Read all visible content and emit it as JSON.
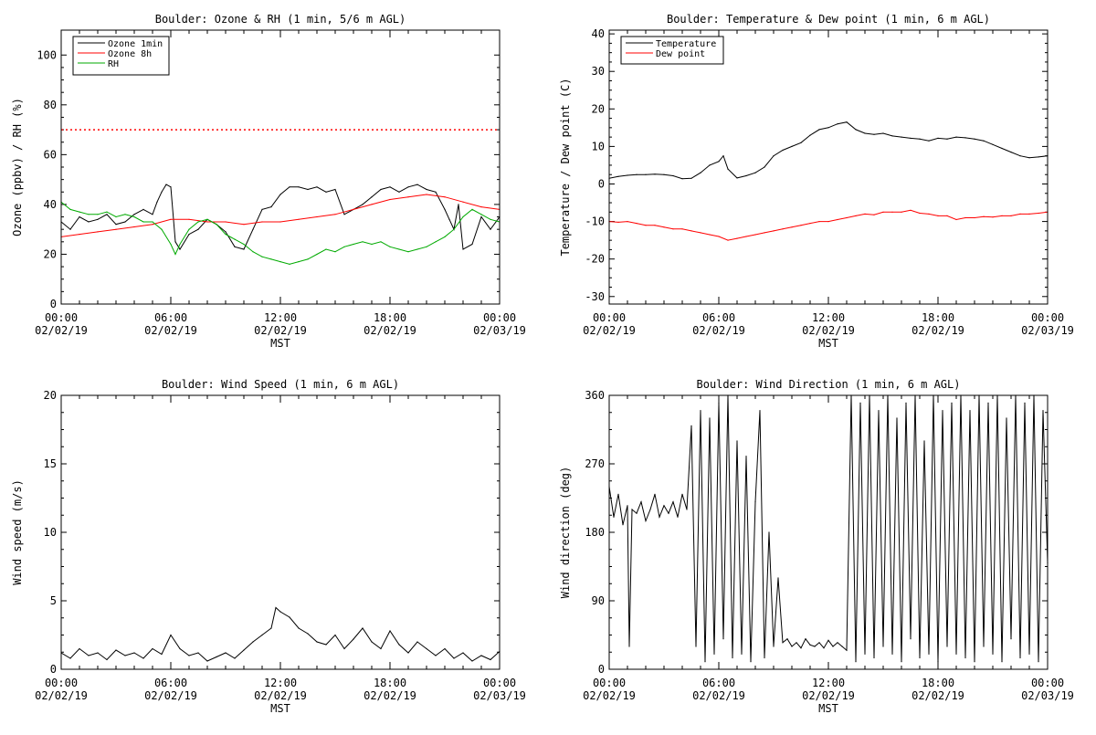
{
  "chart_data": [
    {
      "type": "line",
      "title": "Boulder: Ozone & RH (1 min, 5/6 m AGL)",
      "ylabel": "Ozone (ppbv) / RH (%)",
      "xlabel": "MST",
      "xlim": [
        0,
        24
      ],
      "ylim": [
        0,
        110
      ],
      "yticks": [
        0,
        20,
        40,
        60,
        80,
        100
      ],
      "xtick_labels": [
        [
          "00:00",
          "02/02/19"
        ],
        [
          "06:00",
          "02/02/19"
        ],
        [
          "12:00",
          "02/02/19"
        ],
        [
          "18:00",
          "02/02/19"
        ],
        [
          "00:00",
          "02/03/19"
        ]
      ],
      "reference_line": {
        "y": 70,
        "color": "#ff0000",
        "style": "dotted"
      },
      "legend_position": "top-left",
      "series": [
        {
          "name": "Ozone 1min",
          "color": "#000000",
          "x": [
            0,
            0.5,
            1,
            1.5,
            2,
            2.5,
            3,
            3.5,
            4,
            4.5,
            5,
            5.25,
            5.5,
            5.75,
            6,
            6.25,
            6.5,
            7,
            7.5,
            8,
            8.5,
            9,
            9.5,
            10,
            10.5,
            11,
            11.5,
            12,
            12.5,
            13,
            13.5,
            14,
            14.5,
            15,
            15.5,
            16,
            16.5,
            17,
            17.5,
            18,
            18.5,
            19,
            19.5,
            20,
            20.5,
            21,
            21.25,
            21.5,
            21.75,
            22,
            22.5,
            23,
            23.5,
            24
          ],
          "y": [
            33,
            30,
            35,
            33,
            34,
            36,
            32,
            33,
            36,
            38,
            36,
            41,
            45,
            48,
            47,
            25,
            22,
            28,
            30,
            34,
            32,
            29,
            23,
            22,
            30,
            38,
            39,
            44,
            47,
            47,
            46,
            47,
            45,
            46,
            36,
            38,
            40,
            43,
            46,
            47,
            45,
            47,
            48,
            46,
            45,
            38,
            34,
            30,
            40,
            22,
            24,
            35,
            30,
            35
          ]
        },
        {
          "name": "Ozone 8h",
          "color": "#ff0000",
          "x": [
            0,
            1,
            2,
            3,
            4,
            5,
            6,
            7,
            8,
            9,
            10,
            11,
            12,
            13,
            14,
            15,
            16,
            17,
            18,
            19,
            20,
            21,
            22,
            23,
            24
          ],
          "y": [
            27,
            28,
            29,
            30,
            31,
            32,
            34,
            34,
            33,
            33,
            32,
            33,
            33,
            34,
            35,
            36,
            38,
            40,
            42,
            43,
            44,
            43,
            41,
            39,
            38
          ]
        },
        {
          "name": "RH",
          "color": "#00aa00",
          "x": [
            0,
            0.5,
            1,
            1.5,
            2,
            2.5,
            3,
            3.5,
            4,
            4.5,
            5,
            5.5,
            6,
            6.25,
            6.5,
            7,
            7.5,
            8,
            8.5,
            9,
            9.5,
            10,
            10.5,
            11,
            11.5,
            12,
            12.5,
            13,
            13.5,
            14,
            14.5,
            15,
            15.5,
            16,
            16.5,
            17,
            17.5,
            18,
            18.5,
            19,
            19.5,
            20,
            20.5,
            21,
            21.5,
            22,
            22.5,
            23,
            23.5,
            24
          ],
          "y": [
            41,
            38,
            37,
            36,
            36,
            37,
            35,
            36,
            35,
            33,
            33,
            30,
            24,
            20,
            24,
            30,
            33,
            34,
            32,
            28,
            26,
            24,
            21,
            19,
            18,
            17,
            16,
            17,
            18,
            20,
            22,
            21,
            23,
            24,
            25,
            24,
            25,
            23,
            22,
            21,
            22,
            23,
            25,
            27,
            30,
            35,
            38,
            36,
            34,
            33
          ]
        }
      ]
    },
    {
      "type": "line",
      "title": "Boulder: Temperature & Dew point (1 min, 6 m AGL)",
      "ylabel": "Temperature / Dew point (C)",
      "xlabel": "MST",
      "xlim": [
        0,
        24
      ],
      "ylim": [
        -32,
        41
      ],
      "yticks": [
        -30,
        -20,
        -10,
        0,
        10,
        20,
        30,
        40
      ],
      "xtick_labels": [
        [
          "00:00",
          "02/02/19"
        ],
        [
          "06:00",
          "02/02/19"
        ],
        [
          "12:00",
          "02/02/19"
        ],
        [
          "18:00",
          "02/02/19"
        ],
        [
          "00:00",
          "02/03/19"
        ]
      ],
      "legend_position": "top-left",
      "series": [
        {
          "name": "Temperature",
          "color": "#000000",
          "x": [
            0,
            0.5,
            1,
            1.5,
            2,
            2.5,
            3,
            3.5,
            4,
            4.5,
            5,
            5.5,
            6,
            6.25,
            6.5,
            7,
            7.5,
            8,
            8.5,
            9,
            9.5,
            10,
            10.5,
            11,
            11.5,
            12,
            12.5,
            13,
            13.5,
            14,
            14.5,
            15,
            15.5,
            16,
            16.5,
            17,
            17.5,
            18,
            18.5,
            19,
            19.5,
            20,
            20.5,
            21,
            21.5,
            22,
            22.5,
            23,
            23.5,
            24
          ],
          "y": [
            1.5,
            2,
            2.3,
            2.5,
            2.5,
            2.6,
            2.5,
            2.2,
            1.4,
            1.5,
            3,
            5,
            6,
            7.5,
            4,
            1.6,
            2.2,
            3,
            4.5,
            7.5,
            9,
            10,
            11,
            13,
            14.5,
            15,
            16,
            16.5,
            14.5,
            13.5,
            13.2,
            13.5,
            12.8,
            12.5,
            12.2,
            12,
            11.5,
            12.2,
            12,
            12.5,
            12.3,
            12,
            11.5,
            10.5,
            9.5,
            8.5,
            7.5,
            7,
            7.2,
            7.5
          ]
        },
        {
          "name": "Dew point",
          "color": "#ff0000",
          "x": [
            0,
            0.5,
            1,
            1.5,
            2,
            2.5,
            3,
            3.5,
            4,
            4.5,
            5,
            5.5,
            6,
            6.5,
            7,
            7.5,
            8,
            8.5,
            9,
            9.5,
            10,
            10.5,
            11,
            11.5,
            12,
            12.5,
            13,
            13.5,
            14,
            14.5,
            15,
            15.5,
            16,
            16.5,
            17,
            17.5,
            18,
            18.5,
            19,
            19.5,
            20,
            20.5,
            21,
            21.5,
            22,
            22.5,
            23,
            23.5,
            24
          ],
          "y": [
            -10,
            -10.2,
            -10,
            -10.5,
            -11,
            -11,
            -11.5,
            -12,
            -12,
            -12.5,
            -13,
            -13.5,
            -14,
            -15,
            -14.5,
            -14,
            -13.5,
            -13,
            -12.5,
            -12,
            -11.5,
            -11,
            -10.5,
            -10,
            -10,
            -9.5,
            -9,
            -8.5,
            -8,
            -8.2,
            -7.5,
            -7.5,
            -7.5,
            -7,
            -7.8,
            -8,
            -8.5,
            -8.5,
            -9.5,
            -9,
            -9,
            -8.7,
            -8.8,
            -8.5,
            -8.5,
            -8,
            -8,
            -7.8,
            -7.5
          ]
        }
      ]
    },
    {
      "type": "line",
      "title": "Boulder: Wind Speed (1 min, 6 m AGL)",
      "ylabel": "Wind speed (m/s)",
      "xlabel": "MST",
      "xlim": [
        0,
        24
      ],
      "ylim": [
        0,
        20
      ],
      "yticks": [
        0,
        5,
        10,
        15,
        20
      ],
      "xtick_labels": [
        [
          "00:00",
          "02/02/19"
        ],
        [
          "06:00",
          "02/02/19"
        ],
        [
          "12:00",
          "02/02/19"
        ],
        [
          "18:00",
          "02/02/19"
        ],
        [
          "00:00",
          "02/03/19"
        ]
      ],
      "series": [
        {
          "name": "",
          "color": "#000000",
          "x": [
            0,
            0.5,
            1,
            1.5,
            2,
            2.5,
            3,
            3.5,
            4,
            4.5,
            5,
            5.5,
            6,
            6.5,
            7,
            7.5,
            8,
            8.5,
            9,
            9.5,
            10,
            10.5,
            11,
            11.5,
            11.75,
            12,
            12.5,
            13,
            13.5,
            14,
            14.5,
            15,
            15.5,
            16,
            16.5,
            17,
            17.5,
            18,
            18.5,
            19,
            19.5,
            20,
            20.5,
            21,
            21.5,
            22,
            22.5,
            23,
            23.5,
            24
          ],
          "y": [
            1.2,
            0.8,
            1.5,
            1,
            1.2,
            0.7,
            1.4,
            1,
            1.2,
            0.8,
            1.5,
            1.1,
            2.5,
            1.5,
            1,
            1.2,
            0.6,
            0.9,
            1.2,
            0.8,
            1.4,
            2,
            2.5,
            3,
            4.5,
            4.2,
            3.8,
            3,
            2.6,
            2,
            1.8,
            2.5,
            1.5,
            2.2,
            3,
            2,
            1.5,
            2.8,
            1.8,
            1.2,
            2,
            1.5,
            1,
            1.5,
            0.8,
            1.2,
            0.6,
            1,
            0.7,
            1.3
          ]
        }
      ]
    },
    {
      "type": "line",
      "title": "Boulder: Wind Direction (1 min, 6 m AGL)",
      "ylabel": "Wind direction (deg)",
      "xlabel": "MST",
      "xlim": [
        0,
        24
      ],
      "ylim": [
        0,
        360
      ],
      "yticks": [
        0,
        90,
        180,
        270,
        360
      ],
      "xtick_labels": [
        [
          "00:00",
          "02/02/19"
        ],
        [
          "06:00",
          "02/02/19"
        ],
        [
          "12:00",
          "02/02/19"
        ],
        [
          "18:00",
          "02/02/19"
        ],
        [
          "00:00",
          "02/03/19"
        ]
      ],
      "series": [
        {
          "name": "",
          "color": "#000000",
          "x": [
            0,
            0.25,
            0.5,
            0.75,
            1,
            1.1,
            1.25,
            1.5,
            1.75,
            2,
            2.25,
            2.5,
            2.75,
            3,
            3.25,
            3.5,
            3.75,
            4,
            4.25,
            4.5,
            4.75,
            5,
            5.25,
            5.5,
            5.75,
            6,
            6.25,
            6.5,
            6.75,
            7,
            7.25,
            7.5,
            7.75,
            8,
            8.25,
            8.5,
            8.75,
            9,
            9.25,
            9.5,
            9.75,
            10,
            10.25,
            10.5,
            10.75,
            11,
            11.25,
            11.5,
            11.75,
            12,
            12.25,
            12.5,
            12.75,
            13,
            13.25,
            13.5,
            13.75,
            14,
            14.25,
            14.5,
            14.75,
            15,
            15.25,
            15.5,
            15.75,
            16,
            16.25,
            16.5,
            16.75,
            17,
            17.25,
            17.5,
            17.75,
            18,
            18.25,
            18.5,
            18.75,
            19,
            19.25,
            19.5,
            19.75,
            20,
            20.25,
            20.5,
            20.75,
            21,
            21.25,
            21.5,
            21.75,
            22,
            22.25,
            22.5,
            22.75,
            23,
            23.25,
            23.5,
            23.75,
            24
          ],
          "y": [
            240,
            200,
            230,
            190,
            215,
            30,
            210,
            205,
            220,
            195,
            210,
            230,
            200,
            215,
            205,
            220,
            200,
            230,
            210,
            320,
            30,
            340,
            10,
            330,
            20,
            350,
            40,
            360,
            15,
            300,
            20,
            280,
            10,
            220,
            340,
            15,
            180,
            30,
            120,
            35,
            40,
            30,
            35,
            28,
            40,
            32,
            30,
            35,
            28,
            38,
            30,
            35,
            30,
            25,
            360,
            10,
            350,
            20,
            360,
            15,
            340,
            30,
            360,
            20,
            330,
            10,
            350,
            40,
            360,
            15,
            300,
            20,
            360,
            10,
            340,
            30,
            350,
            20,
            360,
            15,
            340,
            10,
            360,
            30,
            350,
            20,
            360,
            10,
            330,
            40,
            360,
            15,
            350,
            20,
            360,
            10,
            340,
            140
          ]
        }
      ]
    }
  ]
}
